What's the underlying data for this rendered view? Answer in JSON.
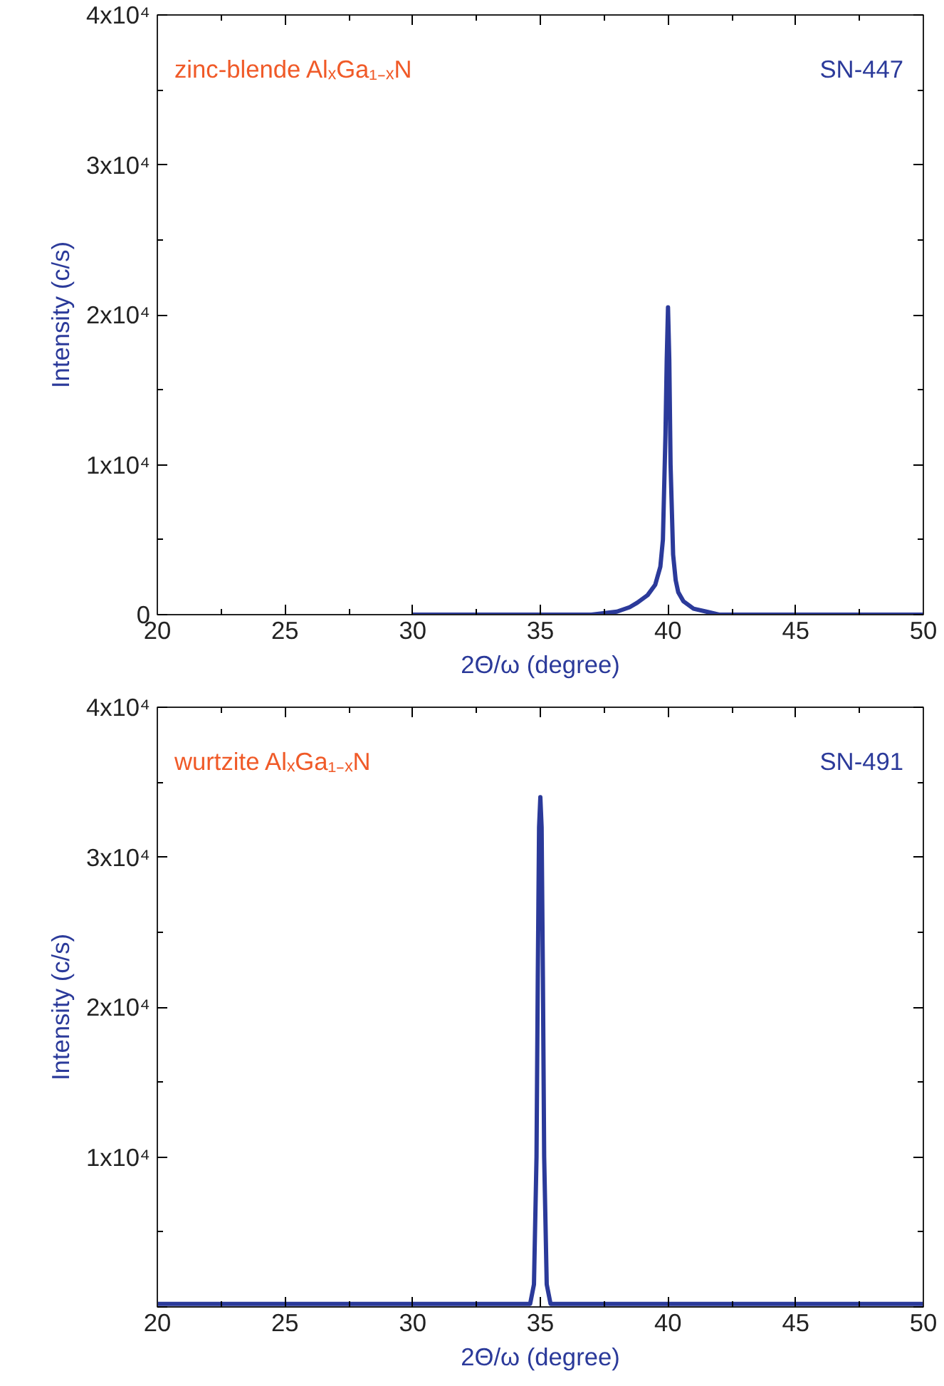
{
  "chart_data": [
    {
      "type": "line",
      "xlabel": "2Θ/ω (degree)",
      "ylabel": "Intensity (c/s)",
      "annotations": [
        "zinc-blende AlₓGa₁₋ₓN",
        "SN-447"
      ],
      "x": [
        30,
        37,
        38,
        38.5,
        38.8,
        39.2,
        39.5,
        39.7,
        39.8,
        39.9,
        39.95,
        40.0,
        40.05,
        40.1,
        40.2,
        40.3,
        40.4,
        40.6,
        41,
        41.5,
        42,
        43,
        50
      ],
      "series": [
        {
          "color": "#2b3a9a",
          "values": [
            0,
            0,
            200,
            500,
            800,
            1300,
            2000,
            3200,
            5000,
            12000,
            17000,
            20500,
            17000,
            10000,
            4000,
            2300,
            1500,
            900,
            400,
            200,
            0,
            0,
            0
          ]
        }
      ],
      "xlim": [
        20,
        50
      ],
      "xticks": [
        20,
        25,
        30,
        35,
        40,
        45,
        50
      ],
      "ylim": [
        0,
        40000
      ],
      "yticks": [
        0,
        {
          "value": 10000,
          "label": "1x10⁴"
        },
        {
          "value": 20000,
          "label": "2x10⁴"
        },
        {
          "value": 30000,
          "label": "3x10⁴"
        },
        {
          "value": 40000,
          "label": "4x10⁴"
        }
      ],
      "grid": false,
      "marker": "none",
      "line_style": "solid"
    },
    {
      "type": "line",
      "xlabel": "2Θ/ω (degree)",
      "ylabel": "Intensity (c/s)",
      "annotations": [
        "wurtzite AlₓGa₁₋ₓN",
        "SN-491"
      ],
      "x": [
        20,
        25,
        30,
        33,
        34,
        34.6,
        34.75,
        34.85,
        34.9,
        34.95,
        35.0,
        35.05,
        35.1,
        35.15,
        35.25,
        35.4,
        36,
        40,
        45,
        50
      ],
      "series": [
        {
          "color": "#2b3a9a",
          "values": [
            200,
            200,
            200,
            200,
            200,
            200,
            1500,
            10000,
            22000,
            32000,
            34000,
            32000,
            22000,
            10000,
            1500,
            200,
            200,
            200,
            200,
            200
          ]
        }
      ],
      "xlim": [
        20,
        50
      ],
      "xticks": [
        20,
        25,
        30,
        35,
        40,
        45,
        50
      ],
      "ylim": [
        0,
        40000
      ],
      "yticks": [
        {
          "value": 0,
          "label": null
        },
        {
          "value": 10000,
          "label": "1x10⁴"
        },
        {
          "value": 20000,
          "label": "2x10⁴"
        },
        {
          "value": 30000,
          "label": "3x10⁴"
        },
        {
          "value": 40000,
          "label": "4x10⁴"
        }
      ],
      "grid": false,
      "marker": "none",
      "line_style": "solid"
    }
  ]
}
